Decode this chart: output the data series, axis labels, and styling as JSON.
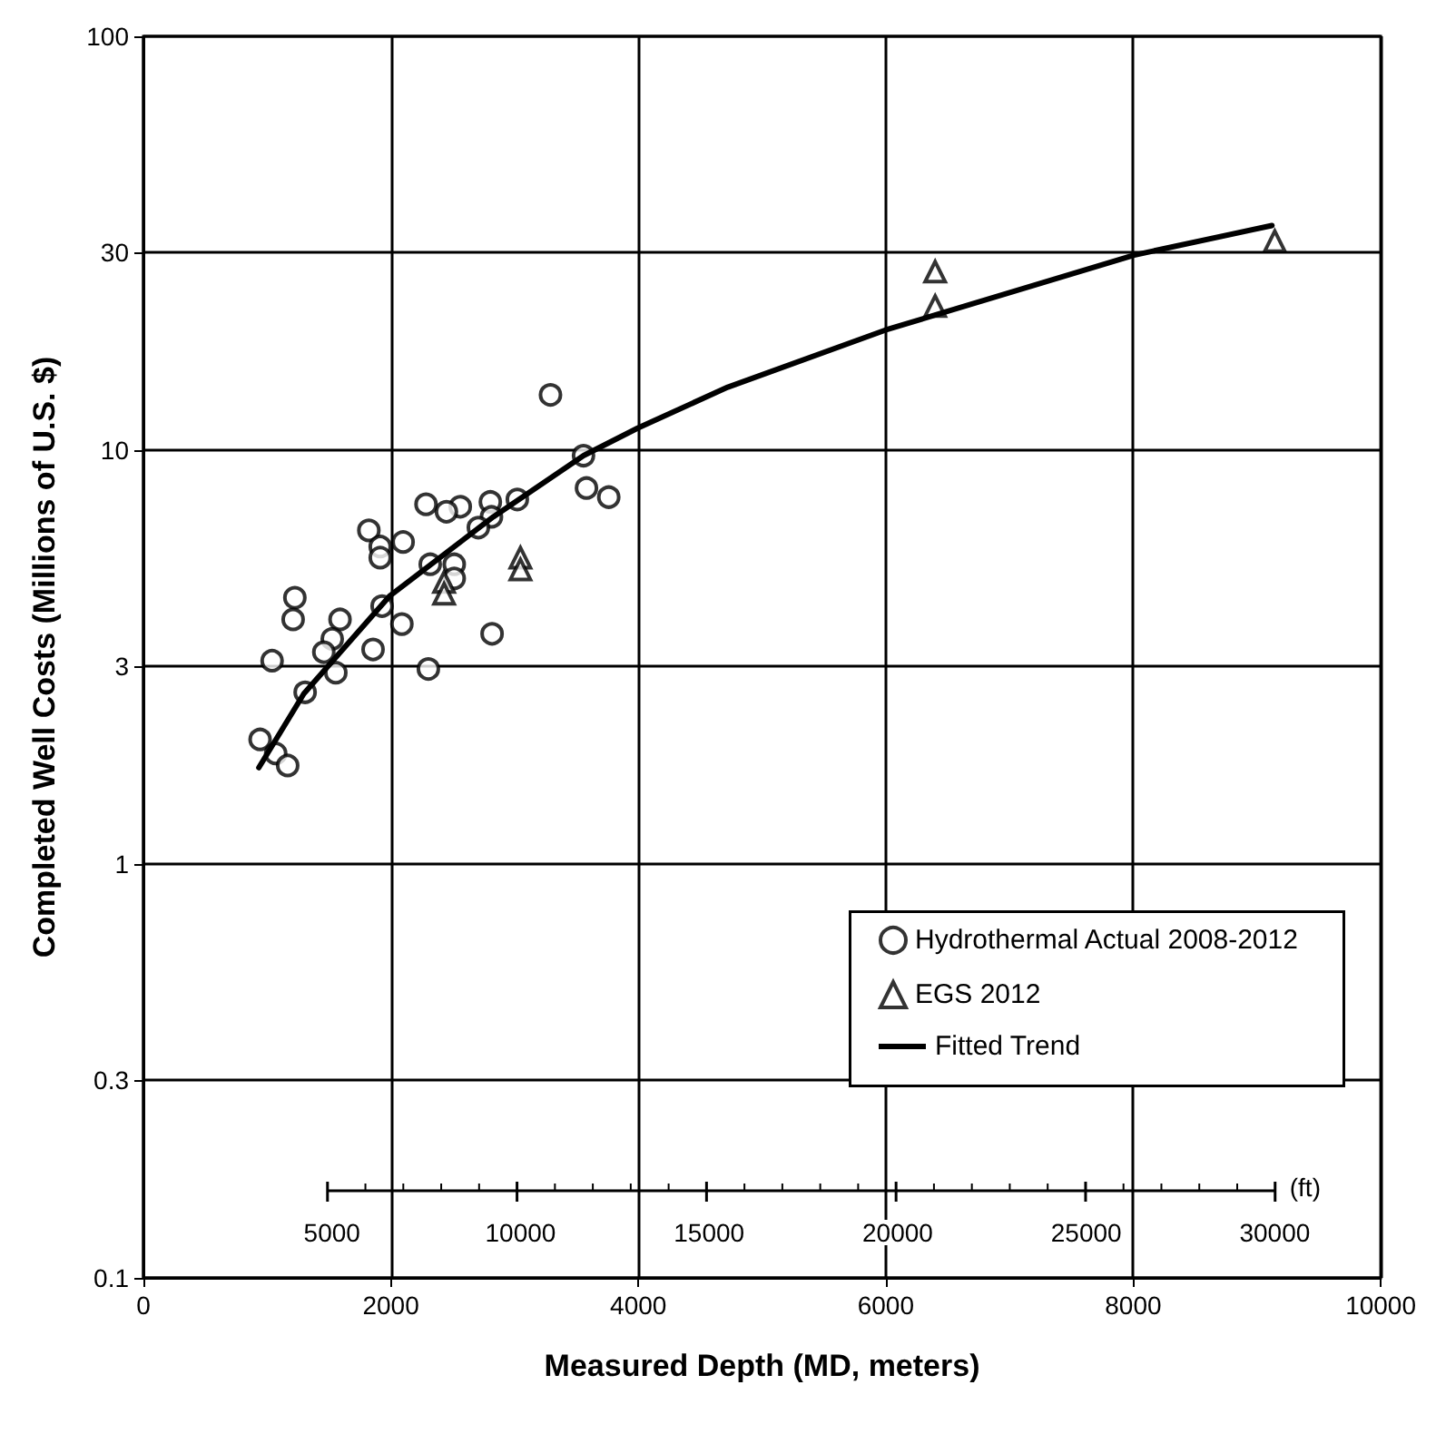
{
  "chart_data": {
    "type": "scatter",
    "xlabel": "Measured Depth (MD, meters)",
    "ylabel": "Completed Well Costs (Millions of U.S. $)",
    "x2label": "(ft)",
    "xlim": [
      0,
      10000
    ],
    "xticks": [
      0,
      2000,
      4000,
      6000,
      8000,
      10000
    ],
    "x2lim": [
      0,
      32808
    ],
    "x2ticks": [
      5000,
      10000,
      15000,
      20000,
      25000,
      30000
    ],
    "ylim": [
      0.1,
      100
    ],
    "yticks": [
      0.1,
      0.3,
      1,
      3,
      10,
      30,
      100
    ],
    "log": "y",
    "grid": true,
    "legend": "bottom right",
    "series": [
      {
        "name": "Hydrothermal Actual 2008-2012",
        "marker": "circle",
        "color": "#000000",
        "x": [
          3290,
          3557,
          3581,
          3761,
          3022,
          2804,
          2813,
          2707,
          2561,
          2449,
          2284,
          1822,
          1914,
          1914,
          2099,
          2318,
          2512,
          2512,
          1929,
          2089,
          2818,
          1856,
          2303,
          1224,
          1210,
          1589,
          1526,
          1458,
          1555,
          1040,
          1307,
          943,
          1069,
          1166
        ],
        "values": [
          13.6,
          9.7,
          8.1,
          7.7,
          7.6,
          7.5,
          6.9,
          6.5,
          7.3,
          7.1,
          7.4,
          6.4,
          5.85,
          5.5,
          6.0,
          5.3,
          5.3,
          4.9,
          4.2,
          3.8,
          3.6,
          3.3,
          2.96,
          4.4,
          3.9,
          3.9,
          3.5,
          3.25,
          2.9,
          3.1,
          2.6,
          2.0,
          1.85,
          1.73
        ]
      },
      {
        "name": "EGS 2012",
        "marker": "triangle",
        "color": "#000000",
        "x": [
          3047,
          3047,
          2430,
          2430,
          6399,
          6399,
          9144
        ],
        "values": [
          5.5,
          5.15,
          4.8,
          4.5,
          27.0,
          22.3,
          32.0
        ]
      },
      {
        "name": "Fitted Trend",
        "type": "line",
        "marker": "none",
        "line_style": "solid",
        "color": "#000000",
        "x": [
          933,
          1297,
          1993,
          2828,
          3557,
          3994,
          4723,
          5996,
          8007,
          9121
        ],
        "values": [
          1.71,
          2.58,
          4.45,
          6.9,
          9.7,
          11.3,
          14.2,
          19.5,
          29.6,
          34.9
        ]
      }
    ]
  }
}
